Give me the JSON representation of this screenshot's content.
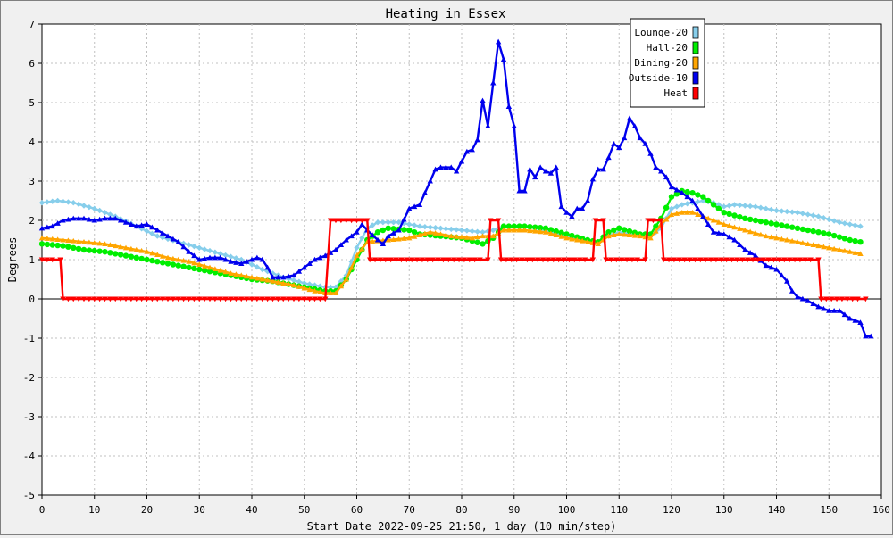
{
  "chart_data": {
    "type": "line",
    "title": "Heating in Essex",
    "xlabel": "Start Date 2022-09-25 21:50, 1 day (10 min/step)",
    "ylabel": "Degrees",
    "xlim": [
      0,
      160
    ],
    "ylim": [
      -5,
      7
    ],
    "x_ticks": [
      0,
      10,
      20,
      30,
      40,
      50,
      60,
      70,
      80,
      90,
      100,
      110,
      120,
      130,
      140,
      150,
      160
    ],
    "y_ticks": [
      -5,
      -4,
      -3,
      -2,
      -1,
      0,
      1,
      2,
      3,
      4,
      5,
      6,
      7
    ],
    "grid": true,
    "legend_position": "top-right",
    "series": [
      {
        "name": "Lounge-20",
        "color": "#87ceeb",
        "marker": "diamond",
        "points": [
          [
            0,
            2.45
          ],
          [
            3,
            2.5
          ],
          [
            6,
            2.45
          ],
          [
            10,
            2.3
          ],
          [
            14,
            2.1
          ],
          [
            18,
            1.85
          ],
          [
            22,
            1.6
          ],
          [
            26,
            1.45
          ],
          [
            30,
            1.3
          ],
          [
            34,
            1.15
          ],
          [
            38,
            1.0
          ],
          [
            42,
            0.75
          ],
          [
            46,
            0.55
          ],
          [
            50,
            0.4
          ],
          [
            54,
            0.3
          ],
          [
            56,
            0.3
          ],
          [
            58,
            0.6
          ],
          [
            60,
            1.3
          ],
          [
            62,
            1.8
          ],
          [
            64,
            1.95
          ],
          [
            68,
            1.95
          ],
          [
            72,
            1.85
          ],
          [
            76,
            1.8
          ],
          [
            80,
            1.75
          ],
          [
            84,
            1.7
          ],
          [
            86,
            1.75
          ],
          [
            88,
            1.85
          ],
          [
            92,
            1.85
          ],
          [
            96,
            1.75
          ],
          [
            100,
            1.6
          ],
          [
            104,
            1.5
          ],
          [
            106,
            1.45
          ],
          [
            108,
            1.6
          ],
          [
            110,
            1.7
          ],
          [
            114,
            1.65
          ],
          [
            116,
            1.6
          ],
          [
            118,
            1.8
          ],
          [
            120,
            2.3
          ],
          [
            122,
            2.4
          ],
          [
            124,
            2.45
          ],
          [
            126,
            2.5
          ],
          [
            128,
            2.45
          ],
          [
            130,
            2.35
          ],
          [
            132,
            2.4
          ],
          [
            136,
            2.35
          ],
          [
            140,
            2.25
          ],
          [
            144,
            2.2
          ],
          [
            148,
            2.1
          ],
          [
            152,
            1.95
          ],
          [
            156,
            1.85
          ]
        ]
      },
      {
        "name": "Hall-20",
        "color": "#00ee00",
        "marker": "circle",
        "points": [
          [
            0,
            1.4
          ],
          [
            4,
            1.35
          ],
          [
            8,
            1.25
          ],
          [
            12,
            1.2
          ],
          [
            16,
            1.1
          ],
          [
            20,
            1.0
          ],
          [
            24,
            0.9
          ],
          [
            28,
            0.8
          ],
          [
            32,
            0.7
          ],
          [
            36,
            0.6
          ],
          [
            40,
            0.5
          ],
          [
            44,
            0.45
          ],
          [
            48,
            0.35
          ],
          [
            52,
            0.25
          ],
          [
            54,
            0.2
          ],
          [
            56,
            0.2
          ],
          [
            58,
            0.5
          ],
          [
            60,
            1.0
          ],
          [
            62,
            1.5
          ],
          [
            64,
            1.7
          ],
          [
            66,
            1.8
          ],
          [
            70,
            1.75
          ],
          [
            72,
            1.65
          ],
          [
            76,
            1.6
          ],
          [
            80,
            1.55
          ],
          [
            84,
            1.4
          ],
          [
            86,
            1.55
          ],
          [
            88,
            1.85
          ],
          [
            92,
            1.85
          ],
          [
            96,
            1.8
          ],
          [
            100,
            1.65
          ],
          [
            104,
            1.5
          ],
          [
            106,
            1.45
          ],
          [
            108,
            1.7
          ],
          [
            110,
            1.8
          ],
          [
            114,
            1.65
          ],
          [
            116,
            1.65
          ],
          [
            118,
            2.05
          ],
          [
            120,
            2.6
          ],
          [
            122,
            2.75
          ],
          [
            124,
            2.7
          ],
          [
            126,
            2.6
          ],
          [
            128,
            2.4
          ],
          [
            130,
            2.2
          ],
          [
            134,
            2.05
          ],
          [
            138,
            1.95
          ],
          [
            142,
            1.85
          ],
          [
            146,
            1.75
          ],
          [
            150,
            1.65
          ],
          [
            154,
            1.5
          ],
          [
            156,
            1.45
          ]
        ]
      },
      {
        "name": "Dining-20",
        "color": "#ffa500",
        "marker": "triangle-up",
        "points": [
          [
            0,
            1.55
          ],
          [
            4,
            1.5
          ],
          [
            8,
            1.45
          ],
          [
            12,
            1.4
          ],
          [
            16,
            1.3
          ],
          [
            20,
            1.2
          ],
          [
            24,
            1.05
          ],
          [
            28,
            0.95
          ],
          [
            32,
            0.8
          ],
          [
            36,
            0.65
          ],
          [
            40,
            0.55
          ],
          [
            44,
            0.45
          ],
          [
            48,
            0.35
          ],
          [
            52,
            0.2
          ],
          [
            54,
            0.15
          ],
          [
            56,
            0.15
          ],
          [
            58,
            0.5
          ],
          [
            60,
            1.1
          ],
          [
            62,
            1.45
          ],
          [
            66,
            1.5
          ],
          [
            70,
            1.55
          ],
          [
            74,
            1.7
          ],
          [
            78,
            1.6
          ],
          [
            82,
            1.55
          ],
          [
            84,
            1.6
          ],
          [
            86,
            1.6
          ],
          [
            88,
            1.75
          ],
          [
            92,
            1.75
          ],
          [
            96,
            1.7
          ],
          [
            100,
            1.55
          ],
          [
            104,
            1.45
          ],
          [
            106,
            1.4
          ],
          [
            108,
            1.6
          ],
          [
            110,
            1.65
          ],
          [
            114,
            1.6
          ],
          [
            116,
            1.55
          ],
          [
            118,
            1.9
          ],
          [
            120,
            2.15
          ],
          [
            122,
            2.2
          ],
          [
            124,
            2.2
          ],
          [
            126,
            2.1
          ],
          [
            128,
            2.0
          ],
          [
            130,
            1.9
          ],
          [
            134,
            1.75
          ],
          [
            138,
            1.6
          ],
          [
            142,
            1.5
          ],
          [
            146,
            1.4
          ],
          [
            150,
            1.3
          ],
          [
            154,
            1.2
          ],
          [
            156,
            1.15
          ]
        ]
      },
      {
        "name": "Outside-10",
        "color": "#0000ee",
        "marker": "triangle-up",
        "points": [
          [
            0,
            1.8
          ],
          [
            2,
            1.85
          ],
          [
            4,
            2.0
          ],
          [
            6,
            2.05
          ],
          [
            8,
            2.05
          ],
          [
            10,
            2.0
          ],
          [
            12,
            2.05
          ],
          [
            14,
            2.05
          ],
          [
            16,
            1.95
          ],
          [
            18,
            1.85
          ],
          [
            20,
            1.9
          ],
          [
            22,
            1.75
          ],
          [
            24,
            1.6
          ],
          [
            26,
            1.45
          ],
          [
            28,
            1.2
          ],
          [
            30,
            1.0
          ],
          [
            32,
            1.05
          ],
          [
            34,
            1.05
          ],
          [
            36,
            0.95
          ],
          [
            38,
            0.9
          ],
          [
            40,
            1.0
          ],
          [
            41,
            1.05
          ],
          [
            42,
            1.0
          ],
          [
            43,
            0.8
          ],
          [
            44,
            0.55
          ],
          [
            46,
            0.55
          ],
          [
            48,
            0.6
          ],
          [
            50,
            0.8
          ],
          [
            52,
            1.0
          ],
          [
            54,
            1.1
          ],
          [
            56,
            1.25
          ],
          [
            58,
            1.5
          ],
          [
            60,
            1.7
          ],
          [
            61,
            1.9
          ],
          [
            62,
            1.75
          ],
          [
            64,
            1.5
          ],
          [
            65,
            1.4
          ],
          [
            66,
            1.6
          ],
          [
            68,
            1.75
          ],
          [
            70,
            2.3
          ],
          [
            72,
            2.4
          ],
          [
            74,
            3.0
          ],
          [
            75,
            3.3
          ],
          [
            76,
            3.35
          ],
          [
            78,
            3.35
          ],
          [
            79,
            3.25
          ],
          [
            81,
            3.75
          ],
          [
            82,
            3.8
          ],
          [
            83,
            4.05
          ],
          [
            84,
            5.05
          ],
          [
            85,
            4.4
          ],
          [
            86,
            5.5
          ],
          [
            87,
            6.55
          ],
          [
            88,
            6.1
          ],
          [
            89,
            4.9
          ],
          [
            90,
            4.4
          ],
          [
            91,
            2.75
          ],
          [
            92,
            2.75
          ],
          [
            93,
            3.3
          ],
          [
            94,
            3.1
          ],
          [
            95,
            3.35
          ],
          [
            96,
            3.25
          ],
          [
            97,
            3.2
          ],
          [
            98,
            3.35
          ],
          [
            99,
            2.35
          ],
          [
            100,
            2.2
          ],
          [
            101,
            2.1
          ],
          [
            102,
            2.3
          ],
          [
            103,
            2.3
          ],
          [
            104,
            2.5
          ],
          [
            105,
            3.05
          ],
          [
            106,
            3.3
          ],
          [
            107,
            3.3
          ],
          [
            108,
            3.6
          ],
          [
            109,
            3.95
          ],
          [
            110,
            3.85
          ],
          [
            111,
            4.1
          ],
          [
            112,
            4.6
          ],
          [
            113,
            4.4
          ],
          [
            114,
            4.1
          ],
          [
            115,
            3.95
          ],
          [
            116,
            3.7
          ],
          [
            117,
            3.35
          ],
          [
            118,
            3.25
          ],
          [
            119,
            3.1
          ],
          [
            120,
            2.85
          ],
          [
            122,
            2.7
          ],
          [
            124,
            2.5
          ],
          [
            126,
            2.1
          ],
          [
            128,
            1.7
          ],
          [
            130,
            1.65
          ],
          [
            132,
            1.5
          ],
          [
            134,
            1.25
          ],
          [
            136,
            1.1
          ],
          [
            138,
            0.85
          ],
          [
            140,
            0.75
          ],
          [
            142,
            0.45
          ],
          [
            143,
            0.2
          ],
          [
            144,
            0.05
          ],
          [
            146,
            -0.05
          ],
          [
            148,
            -0.2
          ],
          [
            150,
            -0.3
          ],
          [
            152,
            -0.3
          ],
          [
            154,
            -0.5
          ],
          [
            156,
            -0.6
          ],
          [
            157,
            -0.95
          ],
          [
            158,
            -0.95
          ]
        ]
      },
      {
        "name": "Heat",
        "color": "#ff0000",
        "marker": "triangle-down",
        "points": [
          [
            0,
            1
          ],
          [
            3.5,
            1
          ],
          [
            4,
            0
          ],
          [
            54,
            0
          ],
          [
            55,
            2
          ],
          [
            62,
            2
          ],
          [
            62.5,
            1
          ],
          [
            85,
            1
          ],
          [
            85.5,
            2
          ],
          [
            87,
            2
          ],
          [
            87.5,
            1
          ],
          [
            105,
            1
          ],
          [
            105.5,
            2
          ],
          [
            107,
            2
          ],
          [
            107.5,
            1
          ],
          [
            115,
            1
          ],
          [
            115.5,
            2
          ],
          [
            118,
            2
          ],
          [
            118.5,
            1
          ],
          [
            148,
            1
          ],
          [
            148.5,
            0
          ],
          [
            157,
            0
          ]
        ]
      }
    ]
  }
}
